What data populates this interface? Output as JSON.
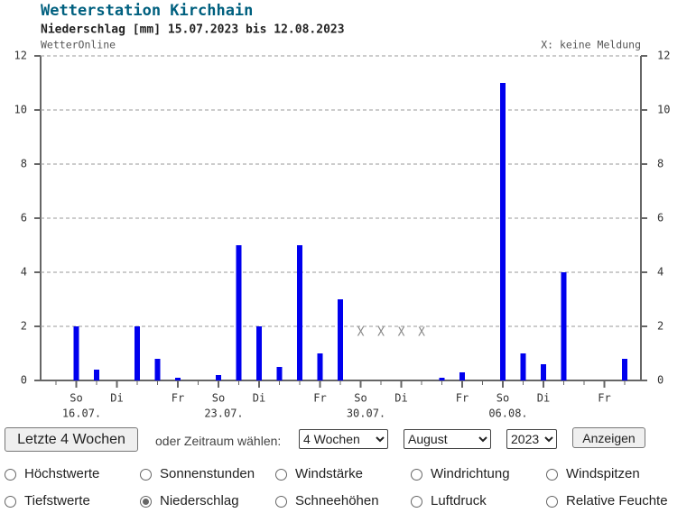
{
  "chart_data": {
    "type": "bar",
    "title": "Wetterstation Kirchhain",
    "subtitle": "Niederschlag [mm] 15.07.2023 bis 12.08.2023",
    "source": "WetterOnline",
    "note": "X: keine Meldung",
    "missing_marker": "X",
    "categories": [
      null,
      "So",
      null,
      "Di",
      null,
      null,
      "Fr",
      null,
      "So",
      null,
      "Di",
      null,
      null,
      "Fr",
      null,
      "So",
      null,
      "Di",
      null,
      null,
      "Fr",
      null,
      "So",
      null,
      "Di",
      null,
      null,
      "Fr",
      null
    ],
    "dates": [
      null,
      "16.07.",
      null,
      null,
      null,
      null,
      null,
      null,
      "23.07.",
      null,
      null,
      null,
      null,
      null,
      null,
      "30.07.",
      null,
      null,
      null,
      null,
      null,
      null,
      "06.08.",
      null,
      null,
      null,
      null,
      null,
      null
    ],
    "values": [
      0,
      2,
      0.4,
      0,
      2,
      0.8,
      0.1,
      0,
      0.2,
      5,
      2,
      0.5,
      5,
      1,
      3,
      null,
      null,
      null,
      null,
      0.1,
      0.3,
      0,
      11,
      1,
      0.6,
      4,
      0,
      0,
      0.8
    ],
    "color": "#0000ee",
    "ylim": [
      0,
      12
    ],
    "yticks": [
      0,
      2,
      4,
      6,
      8,
      10,
      12
    ],
    "y2lim": [
      0,
      12
    ],
    "y2ticks": [
      0,
      2,
      4,
      6,
      8,
      10,
      12
    ],
    "grid": true
  },
  "controls": {
    "recent_button": "Letzte 4 Wochen",
    "range_label": "oder Zeitraum wählen:",
    "duration": "4 Wochen",
    "month": "August",
    "year": "2023",
    "show_button": "Anzeigen",
    "options": [
      {
        "label": "Höchstwerte",
        "checked": false
      },
      {
        "label": "Sonnenstunden",
        "checked": false
      },
      {
        "label": "Windstärke",
        "checked": false
      },
      {
        "label": "Windrichtung",
        "checked": false
      },
      {
        "label": "Windspitzen",
        "checked": false
      },
      {
        "label": "Tiefstwerte",
        "checked": false
      },
      {
        "label": "Niederschlag",
        "checked": true
      },
      {
        "label": "Schneehöhen",
        "checked": false
      },
      {
        "label": "Luftdruck",
        "checked": false
      },
      {
        "label": "Relative Feuchte",
        "checked": false
      }
    ]
  }
}
